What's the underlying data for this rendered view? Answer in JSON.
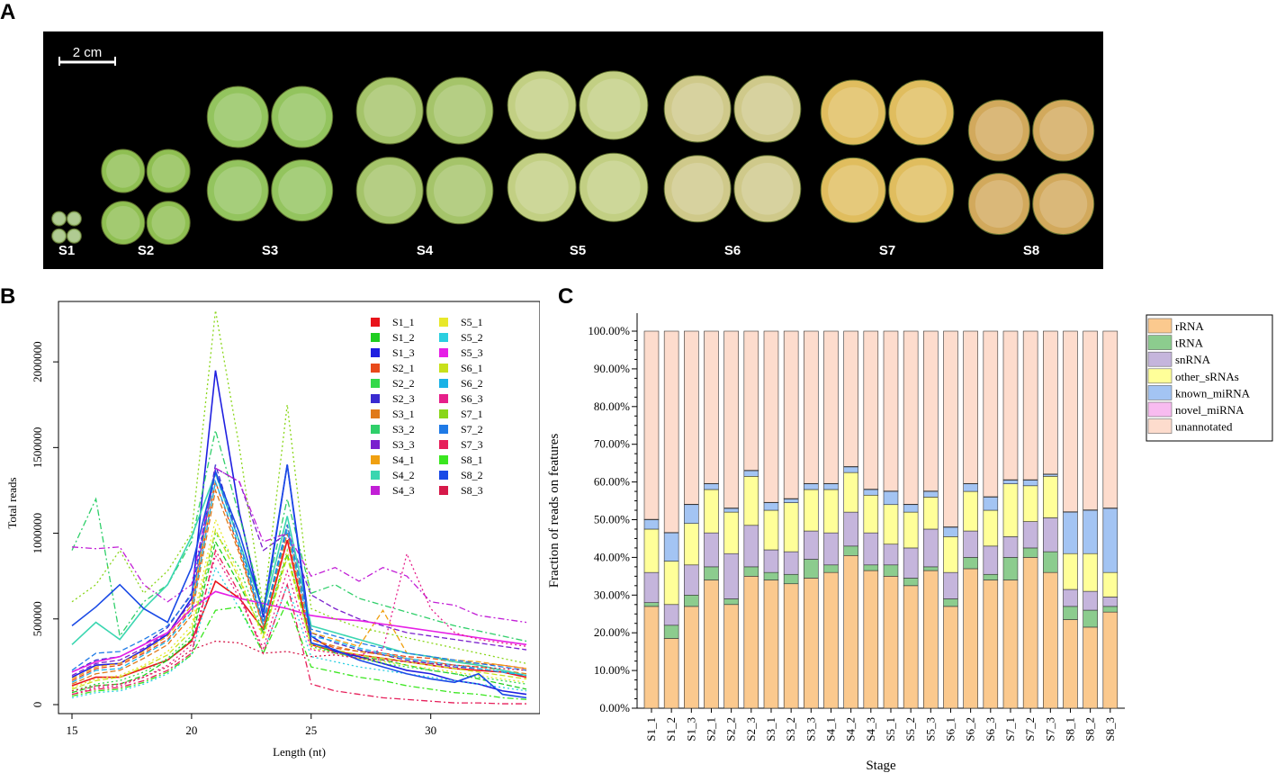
{
  "panels": {
    "a": "A",
    "b": "B",
    "c": "C"
  },
  "photo": {
    "scale_label": "2 cm",
    "stages": [
      "S1",
      "S2",
      "S3",
      "S4",
      "S5",
      "S6",
      "S7",
      "S8"
    ],
    "colors": [
      "#9fc07a",
      "#8fbf52",
      "#93c45e",
      "#a5c46a",
      "#c2cf83",
      "#cfc98a",
      "#e0bd5e",
      "#d2a95c"
    ]
  },
  "chart_data": [
    {
      "type": "line",
      "title": "",
      "xlabel": "Length (nt)",
      "ylabel": "Total reads",
      "xlim": [
        15,
        34
      ],
      "ylim": [
        0,
        2300000
      ],
      "x_ticks": [
        "15",
        "20",
        "25",
        "30"
      ],
      "y_ticks": [
        "0",
        "500000",
        "1000000",
        "1500000",
        "2000000"
      ],
      "x": [
        15,
        16,
        17,
        18,
        19,
        20,
        21,
        22,
        23,
        24,
        25,
        26,
        27,
        28,
        29,
        30,
        31,
        32,
        33,
        34
      ],
      "series": [
        {
          "name": "S1_1",
          "color": "#e8131a",
          "dash": "solid",
          "values": [
            110000,
            160000,
            160000,
            210000,
            260000,
            370000,
            720000,
            620000,
            440000,
            960000,
            350000,
            310000,
            290000,
            270000,
            250000,
            230000,
            210000,
            200000,
            190000,
            160000
          ]
        },
        {
          "name": "S1_2",
          "color": "#1fce20",
          "dash": "dash",
          "values": [
            70000,
            110000,
            120000,
            170000,
            260000,
            380000,
            950000,
            700000,
            420000,
            880000,
            360000,
            300000,
            280000,
            260000,
            230000,
            200000,
            180000,
            150000,
            120000,
            90000
          ]
        },
        {
          "name": "S1_3",
          "color": "#1f1fe0",
          "dash": "solid",
          "values": [
            160000,
            230000,
            240000,
            320000,
            410000,
            620000,
            1950000,
            1120000,
            510000,
            1400000,
            400000,
            310000,
            280000,
            240000,
            200000,
            180000,
            140000,
            120000,
            80000,
            60000
          ]
        },
        {
          "name": "S2_1",
          "color": "#e84a1a",
          "dash": "dash",
          "values": [
            140000,
            210000,
            230000,
            300000,
            380000,
            560000,
            1300000,
            900000,
            460000,
            1000000,
            380000,
            330000,
            310000,
            300000,
            280000,
            270000,
            250000,
            240000,
            230000,
            210000
          ]
        },
        {
          "name": "S2_2",
          "color": "#33d94a",
          "dash": "dot",
          "values": [
            80000,
            120000,
            140000,
            190000,
            270000,
            400000,
            1000000,
            800000,
            420000,
            900000,
            340000,
            300000,
            270000,
            240000,
            220000,
            200000,
            180000,
            160000,
            140000,
            120000
          ]
        },
        {
          "name": "S2_3",
          "color": "#3a2bd0",
          "dash": "dash",
          "values": [
            190000,
            260000,
            280000,
            350000,
            450000,
            650000,
            1400000,
            950000,
            480000,
            1050000,
            420000,
            360000,
            320000,
            290000,
            260000,
            240000,
            220000,
            210000,
            190000,
            170000
          ]
        },
        {
          "name": "S3_1",
          "color": "#e07a1a",
          "dash": "dash",
          "values": [
            120000,
            180000,
            200000,
            270000,
            350000,
            520000,
            1250000,
            880000,
            450000,
            1000000,
            380000,
            340000,
            310000,
            290000,
            270000,
            250000,
            230000,
            220000,
            200000,
            180000
          ]
        },
        {
          "name": "S3_2",
          "color": "#2fcf6a",
          "dash": "dashdot",
          "values": [
            900000,
            1200000,
            400000,
            600000,
            700000,
            950000,
            1600000,
            1100000,
            560000,
            1200000,
            650000,
            700000,
            620000,
            580000,
            540000,
            500000,
            460000,
            430000,
            400000,
            370000
          ]
        },
        {
          "name": "S3_3",
          "color": "#7a1fce",
          "dash": "dash",
          "values": [
            170000,
            240000,
            260000,
            330000,
            420000,
            600000,
            1380000,
            1300000,
            900000,
            1000000,
            640000,
            560000,
            500000,
            460000,
            420000,
            400000,
            380000,
            360000,
            340000,
            320000
          ]
        },
        {
          "name": "S4_1",
          "color": "#f0a010",
          "dash": "dash",
          "values": [
            150000,
            220000,
            240000,
            310000,
            400000,
            580000,
            1350000,
            950000,
            480000,
            1050000,
            420000,
            380000,
            340000,
            550000,
            300000,
            280000,
            260000,
            250000,
            230000,
            210000
          ]
        },
        {
          "name": "S4_2",
          "color": "#3ad6b0",
          "dash": "solid",
          "values": [
            350000,
            480000,
            380000,
            560000,
            700000,
            980000,
            1350000,
            950000,
            540000,
            1100000,
            460000,
            420000,
            380000,
            340000,
            300000,
            280000,
            250000,
            230000,
            200000,
            170000
          ]
        },
        {
          "name": "S4_3",
          "color": "#c21fd6",
          "dash": "dashdot",
          "values": [
            920000,
            910000,
            920000,
            700000,
            600000,
            700000,
            1380000,
            1300000,
            950000,
            1000000,
            750000,
            800000,
            720000,
            800000,
            750000,
            600000,
            580000,
            520000,
            500000,
            480000
          ]
        },
        {
          "name": "S5_1",
          "color": "#e8e82a",
          "dash": "dot",
          "values": [
            100000,
            150000,
            170000,
            230000,
            310000,
            460000,
            1080000,
            750000,
            380000,
            900000,
            330000,
            300000,
            270000,
            250000,
            230000,
            210000,
            190000,
            170000,
            150000,
            130000
          ]
        },
        {
          "name": "S5_2",
          "color": "#2acfe0",
          "dash": "dot",
          "values": [
            40000,
            70000,
            80000,
            120000,
            180000,
            290000,
            800000,
            560000,
            300000,
            700000,
            280000,
            250000,
            220000,
            200000,
            180000,
            160000,
            140000,
            120000,
            100000,
            80000
          ]
        },
        {
          "name": "S5_3",
          "color": "#e61fe6",
          "dash": "solid",
          "values": [
            190000,
            250000,
            280000,
            350000,
            420000,
            560000,
            660000,
            620000,
            590000,
            560000,
            520000,
            500000,
            490000,
            470000,
            450000,
            430000,
            410000,
            390000,
            370000,
            350000
          ]
        },
        {
          "name": "S6_1",
          "color": "#c8e01a",
          "dash": "dash",
          "values": [
            90000,
            140000,
            160000,
            220000,
            290000,
            430000,
            1020000,
            730000,
            400000,
            860000,
            350000,
            320000,
            290000,
            270000,
            250000,
            230000,
            210000,
            190000,
            170000,
            150000
          ]
        },
        {
          "name": "S6_2",
          "color": "#1ab2e6",
          "dash": "dash",
          "values": [
            130000,
            200000,
            210000,
            290000,
            370000,
            540000,
            1300000,
            920000,
            470000,
            1020000,
            400000,
            370000,
            330000,
            300000,
            270000,
            250000,
            230000,
            210000,
            190000,
            170000
          ]
        },
        {
          "name": "S6_3",
          "color": "#e61f8a",
          "dash": "dot",
          "values": [
            60000,
            100000,
            110000,
            160000,
            230000,
            350000,
            870000,
            620000,
            330000,
            780000,
            320000,
            300000,
            290000,
            320000,
            880000,
            560000,
            420000,
            380000,
            360000,
            340000
          ]
        },
        {
          "name": "S7_1",
          "color": "#8ad61a",
          "dash": "dot",
          "values": [
            600000,
            700000,
            900000,
            650000,
            780000,
            1000000,
            2300000,
            1500000,
            560000,
            1750000,
            560000,
            500000,
            450000,
            420000,
            390000,
            360000,
            330000,
            300000,
            270000,
            240000
          ]
        },
        {
          "name": "S7_2",
          "color": "#1f7ae6",
          "dash": "dash",
          "values": [
            200000,
            300000,
            310000,
            380000,
            460000,
            640000,
            1350000,
            950000,
            480000,
            1050000,
            440000,
            400000,
            360000,
            330000,
            300000,
            280000,
            260000,
            240000,
            220000,
            200000
          ]
        },
        {
          "name": "S7_3",
          "color": "#e61f5a",
          "dash": "dashdot",
          "values": [
            60000,
            90000,
            100000,
            140000,
            200000,
            300000,
            900000,
            650000,
            300000,
            700000,
            120000,
            80000,
            60000,
            40000,
            30000,
            20000,
            10000,
            10000,
            5000,
            5000
          ]
        },
        {
          "name": "S8_1",
          "color": "#3ae61f",
          "dash": "dashdot",
          "values": [
            50000,
            80000,
            90000,
            130000,
            190000,
            290000,
            550000,
            570000,
            300000,
            600000,
            220000,
            190000,
            160000,
            140000,
            110000,
            90000,
            70000,
            60000,
            40000,
            30000
          ]
        },
        {
          "name": "S8_2",
          "color": "#1a4ae6",
          "dash": "solid",
          "values": [
            460000,
            570000,
            700000,
            560000,
            480000,
            800000,
            1360000,
            1000000,
            540000,
            1400000,
            360000,
            320000,
            260000,
            220000,
            180000,
            150000,
            130000,
            180000,
            60000,
            40000
          ]
        },
        {
          "name": "S8_3",
          "color": "#d6194a",
          "dash": "dot",
          "values": [
            80000,
            110000,
            120000,
            160000,
            220000,
            320000,
            370000,
            360000,
            300000,
            310000,
            280000,
            290000,
            270000,
            260000,
            250000,
            240000,
            230000,
            220000,
            210000,
            200000
          ]
        }
      ]
    },
    {
      "type": "bar",
      "stacked": true,
      "title": "",
      "xlabel": "Stage",
      "ylabel": "Fraction of  reads on features",
      "ylim": [
        0,
        100
      ],
      "y_ticks": [
        "0.00%",
        "10.00%",
        "20.00%",
        "30.00%",
        "40.00%",
        "50.00%",
        "60.00%",
        "70.00%",
        "80.00%",
        "90.00%",
        "100.00%"
      ],
      "categories": [
        "S1_1",
        "S1_2",
        "S1_3",
        "S2_1",
        "S2_2",
        "S2_3",
        "S3_1",
        "S3_2",
        "S3_3",
        "S4_1",
        "S4_2",
        "S4_3",
        "S5_1",
        "S5_2",
        "S5_3",
        "S6_1",
        "S6_2",
        "S6_3",
        "S7_1",
        "S7_2",
        "S7_3",
        "S8_1",
        "S8_2",
        "S8_3"
      ],
      "series": [
        {
          "name": "rRNA",
          "color": "#fbc98e",
          "values": [
            27.0,
            18.5,
            27.0,
            34.0,
            27.5,
            35.0,
            34.0,
            33.0,
            34.5,
            36.0,
            40.5,
            36.5,
            35.0,
            32.5,
            36.5,
            27.0,
            37.0,
            34.0,
            34.0,
            40.0,
            36.0,
            23.5,
            21.5,
            25.5
          ]
        },
        {
          "name": "tRNA",
          "color": "#8ccc8e",
          "values": [
            1.0,
            3.5,
            3.0,
            3.5,
            1.5,
            2.5,
            2.0,
            2.5,
            5.0,
            2.0,
            2.5,
            1.5,
            3.0,
            2.0,
            1.0,
            2.0,
            3.0,
            1.5,
            6.0,
            2.5,
            5.5,
            3.5,
            4.5,
            1.5
          ]
        },
        {
          "name": "snRNA",
          "color": "#c5b5dc",
          "values": [
            8.0,
            5.5,
            8.0,
            9.0,
            12.0,
            11.0,
            6.0,
            6.0,
            7.5,
            8.5,
            9.0,
            8.5,
            5.5,
            8.0,
            10.0,
            7.0,
            7.0,
            7.5,
            5.5,
            7.0,
            9.0,
            4.5,
            5.0,
            2.5
          ]
        },
        {
          "name": "other_sRNAs",
          "color": "#ffff99",
          "values": [
            11.5,
            11.5,
            11.0,
            11.5,
            11.0,
            13.0,
            10.5,
            13.0,
            11.0,
            11.5,
            10.5,
            10.0,
            10.5,
            9.5,
            8.5,
            9.5,
            10.5,
            9.5,
            14.0,
            9.5,
            11.0,
            9.5,
            10.0,
            6.5
          ]
        },
        {
          "name": "known_miRNA",
          "color": "#a3c4f3",
          "values": [
            2.5,
            7.5,
            5.0,
            1.5,
            1.0,
            1.5,
            2.0,
            1.0,
            1.5,
            1.5,
            1.5,
            1.5,
            3.5,
            2.0,
            1.5,
            2.5,
            2.0,
            3.5,
            1.0,
            1.5,
            0.5,
            11.0,
            11.5,
            17.0
          ]
        },
        {
          "name": "novel_miRNA",
          "color": "#f8bbf0",
          "values": [
            0.1,
            0.1,
            0.1,
            0.1,
            0.1,
            0.1,
            0.1,
            0.1,
            0.1,
            0.1,
            0.1,
            0.1,
            0.1,
            0.1,
            0.1,
            0.1,
            0.1,
            0.1,
            0.1,
            0.1,
            0.1,
            0.1,
            0.1,
            0.1
          ]
        },
        {
          "name": "unannotated",
          "color": "#fddccd",
          "values": [
            49.9,
            53.4,
            45.9,
            40.4,
            46.9,
            36.9,
            45.4,
            44.4,
            40.4,
            40.4,
            35.9,
            41.9,
            42.4,
            45.9,
            42.4,
            51.9,
            40.4,
            43.9,
            39.4,
            39.4,
            37.9,
            47.9,
            47.4,
            46.9
          ]
        }
      ]
    }
  ]
}
